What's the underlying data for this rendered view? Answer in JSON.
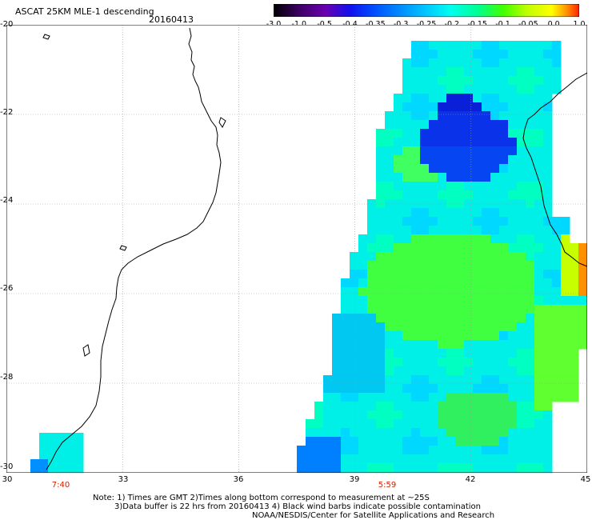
{
  "header": {
    "title": "ASCAT 25KM MLE-1 descending",
    "date": "20160413"
  },
  "colorbar": {
    "labels": [
      "-3.0",
      "-1.0",
      "-0.5",
      "-0.4",
      "-0.35",
      "-0.3",
      "-0.25",
      "-0.2",
      "-0.15",
      "-0.1",
      "-0.05",
      "0.0",
      "1.0"
    ],
    "colors": [
      "#3a0060",
      "#6a00b0",
      "#1010ee",
      "#0050ff",
      "#0090ff",
      "#00c8ff",
      "#00ffee",
      "#00ff90",
      "#40ff00",
      "#c0ff00",
      "#ffff00",
      "#ff9000",
      "#ff2000"
    ]
  },
  "map": {
    "lat_labels": [
      "-20",
      "-22",
      "-24",
      "-26",
      "-28",
      "-30"
    ],
    "lon_labels": [
      "30",
      "33",
      "36",
      "39",
      "42",
      "45"
    ],
    "lat_range": [
      -30,
      -20
    ],
    "lon_range": [
      30,
      45
    ],
    "grid": true,
    "gridline_color": "#999999",
    "pass_times": [
      {
        "label": "7:40",
        "lon": 31.4
      },
      {
        "label": "5:59",
        "lon": 39.7
      }
    ]
  },
  "footer": {
    "line1": "Note: 1) Times are GMT 2)Times along bottom correspond to measurement at ~25S",
    "line2": "3)Data buffer is 22 hrs from 20160413 4) Black wind barbs indicate possible contamination",
    "line3": "NOAA/NESDIS/Center for Satellite Applications and Research"
  }
}
